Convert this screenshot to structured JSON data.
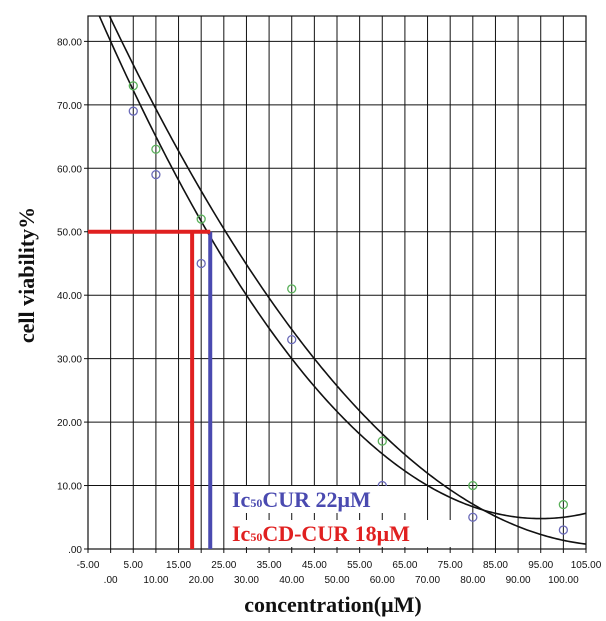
{
  "chart_data": {
    "type": "scatter",
    "xlabel": "concentration(μM)",
    "ylabel": "cell viability%",
    "xlim": [
      -5,
      105
    ],
    "ylim": [
      0,
      84
    ],
    "grid": true,
    "x_ticks": [
      -5,
      0,
      5,
      10,
      15,
      20,
      25,
      30,
      35,
      40,
      45,
      50,
      55,
      60,
      65,
      70,
      75,
      80,
      85,
      90,
      95,
      100,
      105
    ],
    "x_tick_labels": [
      "-5.00",
      ".00",
      "5.00",
      "10.00",
      "15.00",
      "20.00",
      "25.00",
      "30.00",
      "35.00",
      "40.00",
      "45.00",
      "50.00",
      "55.00",
      "60.00",
      "65.00",
      "70.00",
      "75.00",
      "80.00",
      "85.00",
      "90.00",
      "95.00",
      "100.00",
      "105.00"
    ],
    "y_ticks": [
      0,
      10,
      20,
      30,
      40,
      50,
      60,
      70,
      80
    ],
    "y_tick_labels": [
      ".00",
      "10.00",
      "20.00",
      "30.00",
      "40.00",
      "50.00",
      "60.00",
      "70.00",
      "80.00"
    ],
    "series": [
      {
        "color": "#5ab05a",
        "points": [
          [
            5,
            73
          ],
          [
            10,
            63
          ],
          [
            20,
            52
          ],
          [
            40,
            41
          ],
          [
            60,
            17
          ],
          [
            80,
            10
          ],
          [
            100,
            7
          ]
        ]
      },
      {
        "color": "#6a6ab8",
        "points": [
          [
            5,
            69
          ],
          [
            10,
            59
          ],
          [
            20,
            45
          ],
          [
            40,
            33
          ],
          [
            60,
            10
          ],
          [
            80,
            5
          ],
          [
            100,
            3
          ]
        ]
      }
    ],
    "fit_curves": [
      {
        "color": "#111111",
        "x_range": [
          -5,
          105
        ],
        "coef": [
          83.625,
          -1.494,
          0.006714
        ]
      },
      {
        "color": "#111111",
        "x_range": [
          -5,
          105
        ],
        "coef": [
          80.0,
          -1.5833,
          0.008333
        ]
      }
    ],
    "ic50_markers": [
      {
        "x": 22,
        "y": 50,
        "color": "#4a4ab0"
      },
      {
        "x": 18,
        "y": 50,
        "color": "#e02020"
      }
    ],
    "annotations": [
      {
        "prefix": "Ic",
        "sub": "50",
        "text": "CUR 22μM",
        "color": "#4a4ab0"
      },
      {
        "prefix": "Ic",
        "sub": "50",
        "text": "CD-CUR 18μM",
        "color": "#e02020"
      }
    ]
  }
}
